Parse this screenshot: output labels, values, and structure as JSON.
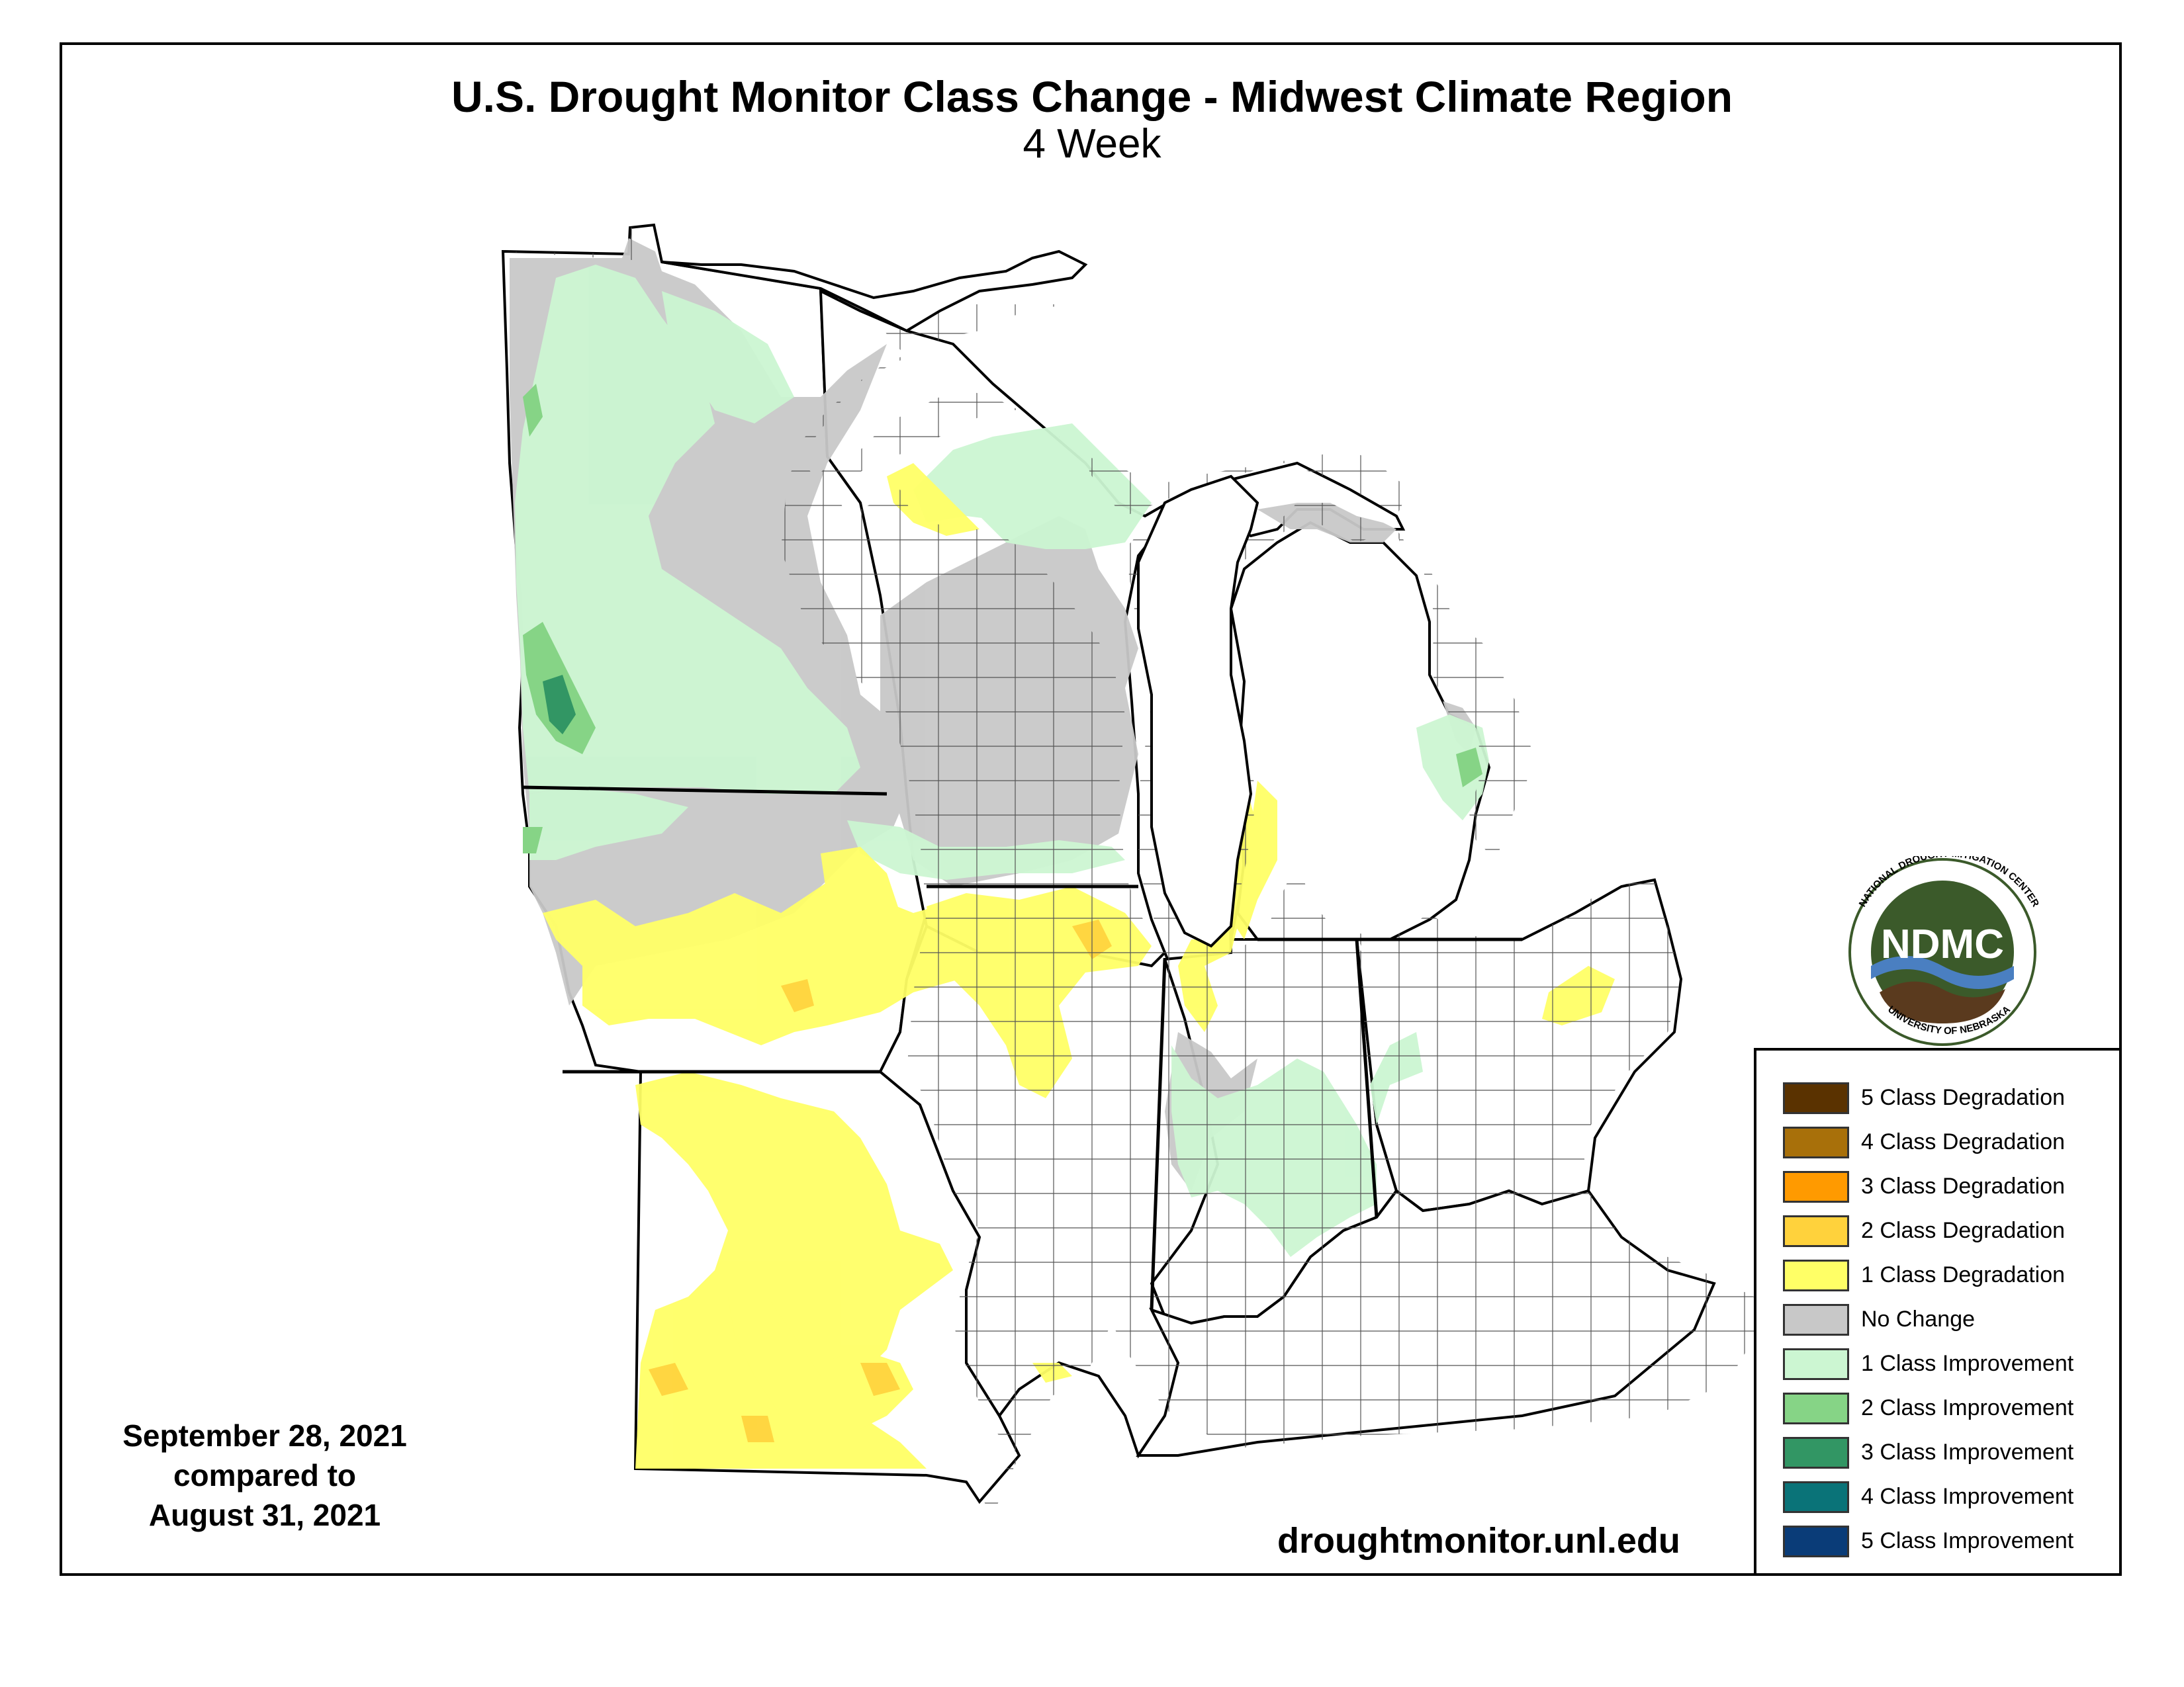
{
  "header": {
    "title": "U.S. Drought Monitor Class Change - Midwest Climate Region",
    "subtitle": "4 Week"
  },
  "dates": {
    "line1": "September 28, 2021",
    "line2": "compared to",
    "line3": "August 31, 2021"
  },
  "source_url": "droughtmonitor.unl.edu",
  "logo": {
    "acronym": "NDMC",
    "ring_text_top": "NATIONAL DROUGHT MITIGATION CENTER",
    "ring_text_bottom": "UNIVERSITY OF NEBRASKA"
  },
  "legend": {
    "items": [
      {
        "label": "5 Class Degradation",
        "color": "#5a3200"
      },
      {
        "label": "4 Class Degradation",
        "color": "#a8700a"
      },
      {
        "label": "3 Class Degradation",
        "color": "#ff9a00"
      },
      {
        "label": "2 Class Degradation",
        "color": "#ffd23c"
      },
      {
        "label": "1 Class Degradation",
        "color": "#ffff66"
      },
      {
        "label": "No Change",
        "color": "#c8c8c8"
      },
      {
        "label": "1 Class Improvement",
        "color": "#ccf6d2"
      },
      {
        "label": "2 Class Improvement",
        "color": "#86d486"
      },
      {
        "label": "3 Class Improvement",
        "color": "#329664"
      },
      {
        "label": "4 Class Improvement",
        "color": "#0a7378"
      },
      {
        "label": "5 Class Improvement",
        "color": "#0a3c78"
      }
    ]
  },
  "colors": {
    "deg2": "#ffd23c",
    "deg1": "#ffff66",
    "no_change": "#c8c8c8",
    "imp1": "#ccf6d2",
    "imp2": "#86d486",
    "imp3": "#329664",
    "lake": "#ffffff",
    "logo_green": "#3b5a2a",
    "logo_blue": "#4a7fc1",
    "logo_brown": "#5a3a1e"
  }
}
